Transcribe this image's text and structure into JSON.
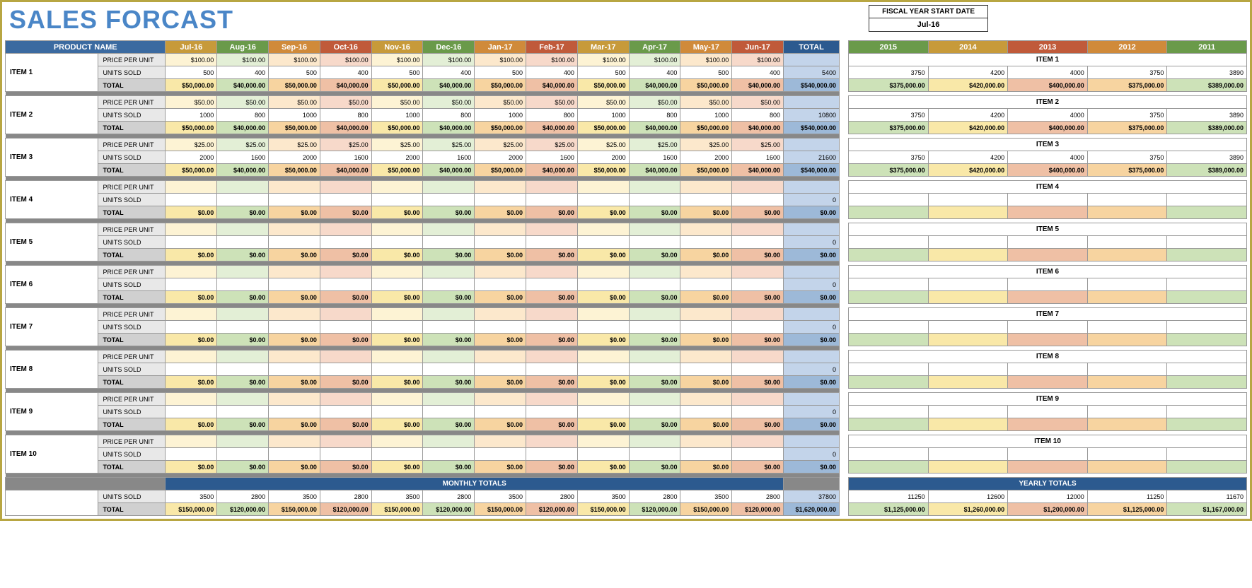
{
  "title": "SALES FORCAST",
  "fiscal_label": "FISCAL YEAR START DATE",
  "fiscal_value": "Jul-16",
  "product_header": "PRODUCT NAME",
  "total_header": "TOTAL",
  "months": [
    "Jul-16",
    "Aug-16",
    "Sep-16",
    "Oct-16",
    "Nov-16",
    "Dec-16",
    "Jan-17",
    "Feb-17",
    "Mar-17",
    "Apr-17",
    "May-17",
    "Jun-17"
  ],
  "month_colors": [
    "#c79a3a",
    "#6a9a4a",
    "#d08a3a",
    "#c05a3a",
    "#c79a3a",
    "#6a9a4a",
    "#d08a3a",
    "#c05a3a",
    "#c79a3a",
    "#6a9a4a",
    "#d08a3a",
    "#c05a3a"
  ],
  "col_light": [
    "#fdf3d4",
    "#e3efd6",
    "#fce8cc",
    "#f7d9ca",
    "#fdf3d4",
    "#e3efd6",
    "#fce8cc",
    "#f7d9ca",
    "#fdf3d4",
    "#e3efd6",
    "#fce8cc",
    "#f7d9ca"
  ],
  "col_mid": [
    "#f9e8a8",
    "#cde2b8",
    "#f7d4a0",
    "#efc0a5",
    "#f9e8a8",
    "#cde2b8",
    "#f7d4a0",
    "#efc0a5",
    "#f9e8a8",
    "#cde2b8",
    "#f7d4a0",
    "#efc0a5"
  ],
  "years": [
    "2015",
    "2014",
    "2013",
    "2012",
    "2011"
  ],
  "year_colors": [
    "#6a9a4a",
    "#c79a3a",
    "#c05a3a",
    "#d08a3a",
    "#6a9a4a"
  ],
  "year_light": [
    "#e3efd6",
    "#fdf3d4",
    "#f7d9ca",
    "#fce8cc",
    "#e3efd6"
  ],
  "year_mid": [
    "#cde2b8",
    "#f9e8a8",
    "#efc0a5",
    "#f7d4a0",
    "#cde2b8"
  ],
  "row_labels": {
    "ppu": "PRICE PER UNIT",
    "units": "UNITS SOLD",
    "total": "TOTAL"
  },
  "monthly_totals_label": "MONTHLY TOTALS",
  "yearly_totals_label": "YEARLY TOTALS",
  "items": [
    {
      "name": "ITEM 1",
      "ppu": [
        "$100.00",
        "$100.00",
        "$100.00",
        "$100.00",
        "$100.00",
        "$100.00",
        "$100.00",
        "$100.00",
        "$100.00",
        "$100.00",
        "$100.00",
        "$100.00"
      ],
      "units": [
        "500",
        "400",
        "500",
        "400",
        "500",
        "400",
        "500",
        "400",
        "500",
        "400",
        "500",
        "400"
      ],
      "totals": [
        "$50,000.00",
        "$40,000.00",
        "$50,000.00",
        "$40,000.00",
        "$50,000.00",
        "$40,000.00",
        "$50,000.00",
        "$40,000.00",
        "$50,000.00",
        "$40,000.00",
        "$50,000.00",
        "$40,000.00"
      ],
      "sum_units": "5400",
      "sum_total": "$540,000.00",
      "yr_units": [
        "3750",
        "4200",
        "4000",
        "3750",
        "3890"
      ],
      "yr_totals": [
        "$375,000.00",
        "$420,000.00",
        "$400,000.00",
        "$375,000.00",
        "$389,000.00"
      ]
    },
    {
      "name": "ITEM 2",
      "ppu": [
        "$50.00",
        "$50.00",
        "$50.00",
        "$50.00",
        "$50.00",
        "$50.00",
        "$50.00",
        "$50.00",
        "$50.00",
        "$50.00",
        "$50.00",
        "$50.00"
      ],
      "units": [
        "1000",
        "800",
        "1000",
        "800",
        "1000",
        "800",
        "1000",
        "800",
        "1000",
        "800",
        "1000",
        "800"
      ],
      "totals": [
        "$50,000.00",
        "$40,000.00",
        "$50,000.00",
        "$40,000.00",
        "$50,000.00",
        "$40,000.00",
        "$50,000.00",
        "$40,000.00",
        "$50,000.00",
        "$40,000.00",
        "$50,000.00",
        "$40,000.00"
      ],
      "sum_units": "10800",
      "sum_total": "$540,000.00",
      "yr_units": [
        "3750",
        "4200",
        "4000",
        "3750",
        "3890"
      ],
      "yr_totals": [
        "$375,000.00",
        "$420,000.00",
        "$400,000.00",
        "$375,000.00",
        "$389,000.00"
      ]
    },
    {
      "name": "ITEM 3",
      "ppu": [
        "$25.00",
        "$25.00",
        "$25.00",
        "$25.00",
        "$25.00",
        "$25.00",
        "$25.00",
        "$25.00",
        "$25.00",
        "$25.00",
        "$25.00",
        "$25.00"
      ],
      "units": [
        "2000",
        "1600",
        "2000",
        "1600",
        "2000",
        "1600",
        "2000",
        "1600",
        "2000",
        "1600",
        "2000",
        "1600"
      ],
      "totals": [
        "$50,000.00",
        "$40,000.00",
        "$50,000.00",
        "$40,000.00",
        "$50,000.00",
        "$40,000.00",
        "$50,000.00",
        "$40,000.00",
        "$50,000.00",
        "$40,000.00",
        "$50,000.00",
        "$40,000.00"
      ],
      "sum_units": "21600",
      "sum_total": "$540,000.00",
      "yr_units": [
        "3750",
        "4200",
        "4000",
        "3750",
        "3890"
      ],
      "yr_totals": [
        "$375,000.00",
        "$420,000.00",
        "$400,000.00",
        "$375,000.00",
        "$389,000.00"
      ]
    },
    {
      "name": "ITEM 4",
      "ppu": [
        "",
        "",
        "",
        "",
        "",
        "",
        "",
        "",
        "",
        "",
        "",
        ""
      ],
      "units": [
        "",
        "",
        "",
        "",
        "",
        "",
        "",
        "",
        "",
        "",
        "",
        ""
      ],
      "totals": [
        "$0.00",
        "$0.00",
        "$0.00",
        "$0.00",
        "$0.00",
        "$0.00",
        "$0.00",
        "$0.00",
        "$0.00",
        "$0.00",
        "$0.00",
        "$0.00"
      ],
      "sum_units": "0",
      "sum_total": "$0.00",
      "yr_units": [
        "",
        "",
        "",
        "",
        ""
      ],
      "yr_totals": [
        "",
        "",
        "",
        "",
        ""
      ]
    },
    {
      "name": "ITEM 5",
      "ppu": [
        "",
        "",
        "",
        "",
        "",
        "",
        "",
        "",
        "",
        "",
        "",
        ""
      ],
      "units": [
        "",
        "",
        "",
        "",
        "",
        "",
        "",
        "",
        "",
        "",
        "",
        ""
      ],
      "totals": [
        "$0.00",
        "$0.00",
        "$0.00",
        "$0.00",
        "$0.00",
        "$0.00",
        "$0.00",
        "$0.00",
        "$0.00",
        "$0.00",
        "$0.00",
        "$0.00"
      ],
      "sum_units": "0",
      "sum_total": "$0.00",
      "yr_units": [
        "",
        "",
        "",
        "",
        ""
      ],
      "yr_totals": [
        "",
        "",
        "",
        "",
        ""
      ]
    },
    {
      "name": "ITEM 6",
      "ppu": [
        "",
        "",
        "",
        "",
        "",
        "",
        "",
        "",
        "",
        "",
        "",
        ""
      ],
      "units": [
        "",
        "",
        "",
        "",
        "",
        "",
        "",
        "",
        "",
        "",
        "",
        ""
      ],
      "totals": [
        "$0.00",
        "$0.00",
        "$0.00",
        "$0.00",
        "$0.00",
        "$0.00",
        "$0.00",
        "$0.00",
        "$0.00",
        "$0.00",
        "$0.00",
        "$0.00"
      ],
      "sum_units": "0",
      "sum_total": "$0.00",
      "yr_units": [
        "",
        "",
        "",
        "",
        ""
      ],
      "yr_totals": [
        "",
        "",
        "",
        "",
        ""
      ]
    },
    {
      "name": "ITEM 7",
      "ppu": [
        "",
        "",
        "",
        "",
        "",
        "",
        "",
        "",
        "",
        "",
        "",
        ""
      ],
      "units": [
        "",
        "",
        "",
        "",
        "",
        "",
        "",
        "",
        "",
        "",
        "",
        ""
      ],
      "totals": [
        "$0.00",
        "$0.00",
        "$0.00",
        "$0.00",
        "$0.00",
        "$0.00",
        "$0.00",
        "$0.00",
        "$0.00",
        "$0.00",
        "$0.00",
        "$0.00"
      ],
      "sum_units": "0",
      "sum_total": "$0.00",
      "yr_units": [
        "",
        "",
        "",
        "",
        ""
      ],
      "yr_totals": [
        "",
        "",
        "",
        "",
        ""
      ]
    },
    {
      "name": "ITEM 8",
      "ppu": [
        "",
        "",
        "",
        "",
        "",
        "",
        "",
        "",
        "",
        "",
        "",
        ""
      ],
      "units": [
        "",
        "",
        "",
        "",
        "",
        "",
        "",
        "",
        "",
        "",
        "",
        ""
      ],
      "totals": [
        "$0.00",
        "$0.00",
        "$0.00",
        "$0.00",
        "$0.00",
        "$0.00",
        "$0.00",
        "$0.00",
        "$0.00",
        "$0.00",
        "$0.00",
        "$0.00"
      ],
      "sum_units": "0",
      "sum_total": "$0.00",
      "yr_units": [
        "",
        "",
        "",
        "",
        ""
      ],
      "yr_totals": [
        "",
        "",
        "",
        "",
        ""
      ]
    },
    {
      "name": "ITEM 9",
      "ppu": [
        "",
        "",
        "",
        "",
        "",
        "",
        "",
        "",
        "",
        "",
        "",
        ""
      ],
      "units": [
        "",
        "",
        "",
        "",
        "",
        "",
        "",
        "",
        "",
        "",
        "",
        ""
      ],
      "totals": [
        "$0.00",
        "$0.00",
        "$0.00",
        "$0.00",
        "$0.00",
        "$0.00",
        "$0.00",
        "$0.00",
        "$0.00",
        "$0.00",
        "$0.00",
        "$0.00"
      ],
      "sum_units": "0",
      "sum_total": "$0.00",
      "yr_units": [
        "",
        "",
        "",
        "",
        ""
      ],
      "yr_totals": [
        "",
        "",
        "",
        "",
        ""
      ]
    },
    {
      "name": "ITEM 10",
      "ppu": [
        "",
        "",
        "",
        "",
        "",
        "",
        "",
        "",
        "",
        "",
        "",
        ""
      ],
      "units": [
        "",
        "",
        "",
        "",
        "",
        "",
        "",
        "",
        "",
        "",
        "",
        ""
      ],
      "totals": [
        "$0.00",
        "$0.00",
        "$0.00",
        "$0.00",
        "$0.00",
        "$0.00",
        "$0.00",
        "$0.00",
        "$0.00",
        "$0.00",
        "$0.00",
        "$0.00"
      ],
      "sum_units": "0",
      "sum_total": "$0.00",
      "yr_units": [
        "",
        "",
        "",
        "",
        ""
      ],
      "yr_totals": [
        "",
        "",
        "",
        "",
        ""
      ]
    }
  ],
  "monthly_units": [
    "3500",
    "2800",
    "3500",
    "2800",
    "3500",
    "2800",
    "3500",
    "2800",
    "3500",
    "2800",
    "3500",
    "2800"
  ],
  "monthly_units_sum": "37800",
  "monthly_totals": [
    "$150,000.00",
    "$120,000.00",
    "$150,000.00",
    "$120,000.00",
    "$150,000.00",
    "$120,000.00",
    "$150,000.00",
    "$120,000.00",
    "$150,000.00",
    "$120,000.00",
    "$150,000.00",
    "$120,000.00"
  ],
  "grand_total": "$1,620,000.00",
  "yearly_units": [
    "11250",
    "12600",
    "12000",
    "11250",
    "11670"
  ],
  "yearly_totals": [
    "$1,125,000.00",
    "$1,260,000.00",
    "$1,200,000.00",
    "$1,125,000.00",
    "$1,167,000.00"
  ]
}
